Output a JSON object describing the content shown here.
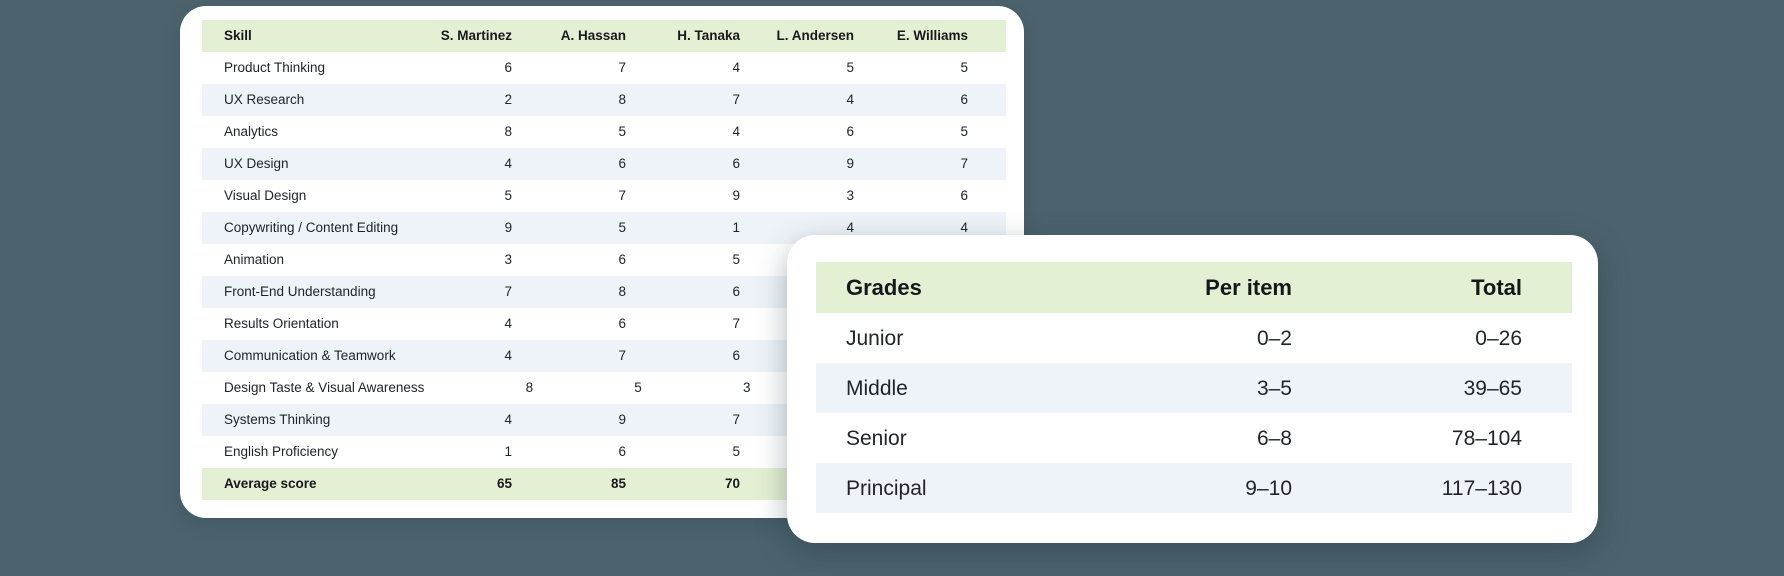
{
  "colors": {
    "background": "#4c636e",
    "header_green": "#e4f0d3",
    "row_alt_blue": "#eef3f9",
    "card_white": "#ffffff"
  },
  "skill_matrix": {
    "columns": [
      "Skill",
      "S. Martinez",
      "A. Hassan",
      "H. Tanaka",
      "L. Andersen",
      "E. Williams"
    ],
    "rows": [
      {
        "skill": "Product Thinking",
        "scores": [
          "6",
          "7",
          "4",
          "5",
          "5"
        ]
      },
      {
        "skill": "UX Research",
        "scores": [
          "2",
          "8",
          "7",
          "4",
          "6"
        ]
      },
      {
        "skill": "Analytics",
        "scores": [
          "8",
          "5",
          "4",
          "6",
          "5"
        ]
      },
      {
        "skill": "UX Design",
        "scores": [
          "4",
          "6",
          "6",
          "9",
          "7"
        ]
      },
      {
        "skill": "Visual Design",
        "scores": [
          "5",
          "7",
          "9",
          "3",
          "6"
        ]
      },
      {
        "skill": "Copywriting / Content Editing",
        "scores": [
          "9",
          "5",
          "1",
          "4",
          "4"
        ]
      },
      {
        "skill": "Animation",
        "scores": [
          "3",
          "6",
          "5",
          "",
          ""
        ]
      },
      {
        "skill": "Front-End Understanding",
        "scores": [
          "7",
          "8",
          "6",
          "",
          ""
        ]
      },
      {
        "skill": "Results Orientation",
        "scores": [
          "4",
          "6",
          "7",
          "",
          ""
        ]
      },
      {
        "skill": "Communication & Teamwork",
        "scores": [
          "4",
          "7",
          "6",
          "",
          ""
        ]
      },
      {
        "skill": "Design Taste & Visual Awareness",
        "scores": [
          "8",
          "5",
          "3",
          "",
          ""
        ]
      },
      {
        "skill": "Systems Thinking",
        "scores": [
          "4",
          "9",
          "7",
          "",
          ""
        ]
      },
      {
        "skill": "English Proficiency",
        "scores": [
          "1",
          "6",
          "5",
          "",
          ""
        ]
      }
    ],
    "footer": {
      "label": "Average score",
      "scores": [
        "65",
        "85",
        "70",
        "",
        ""
      ]
    }
  },
  "grades_table": {
    "columns": [
      "Grades",
      "Per item",
      "Total"
    ],
    "rows": [
      {
        "grade": "Junior",
        "per_item": "0–2",
        "total": "0–26"
      },
      {
        "grade": "Middle",
        "per_item": "3–5",
        "total": "39–65"
      },
      {
        "grade": "Senior",
        "per_item": "6–8",
        "total": "78–104"
      },
      {
        "grade": "Principal",
        "per_item": "9–10",
        "total": "117–130"
      }
    ]
  }
}
